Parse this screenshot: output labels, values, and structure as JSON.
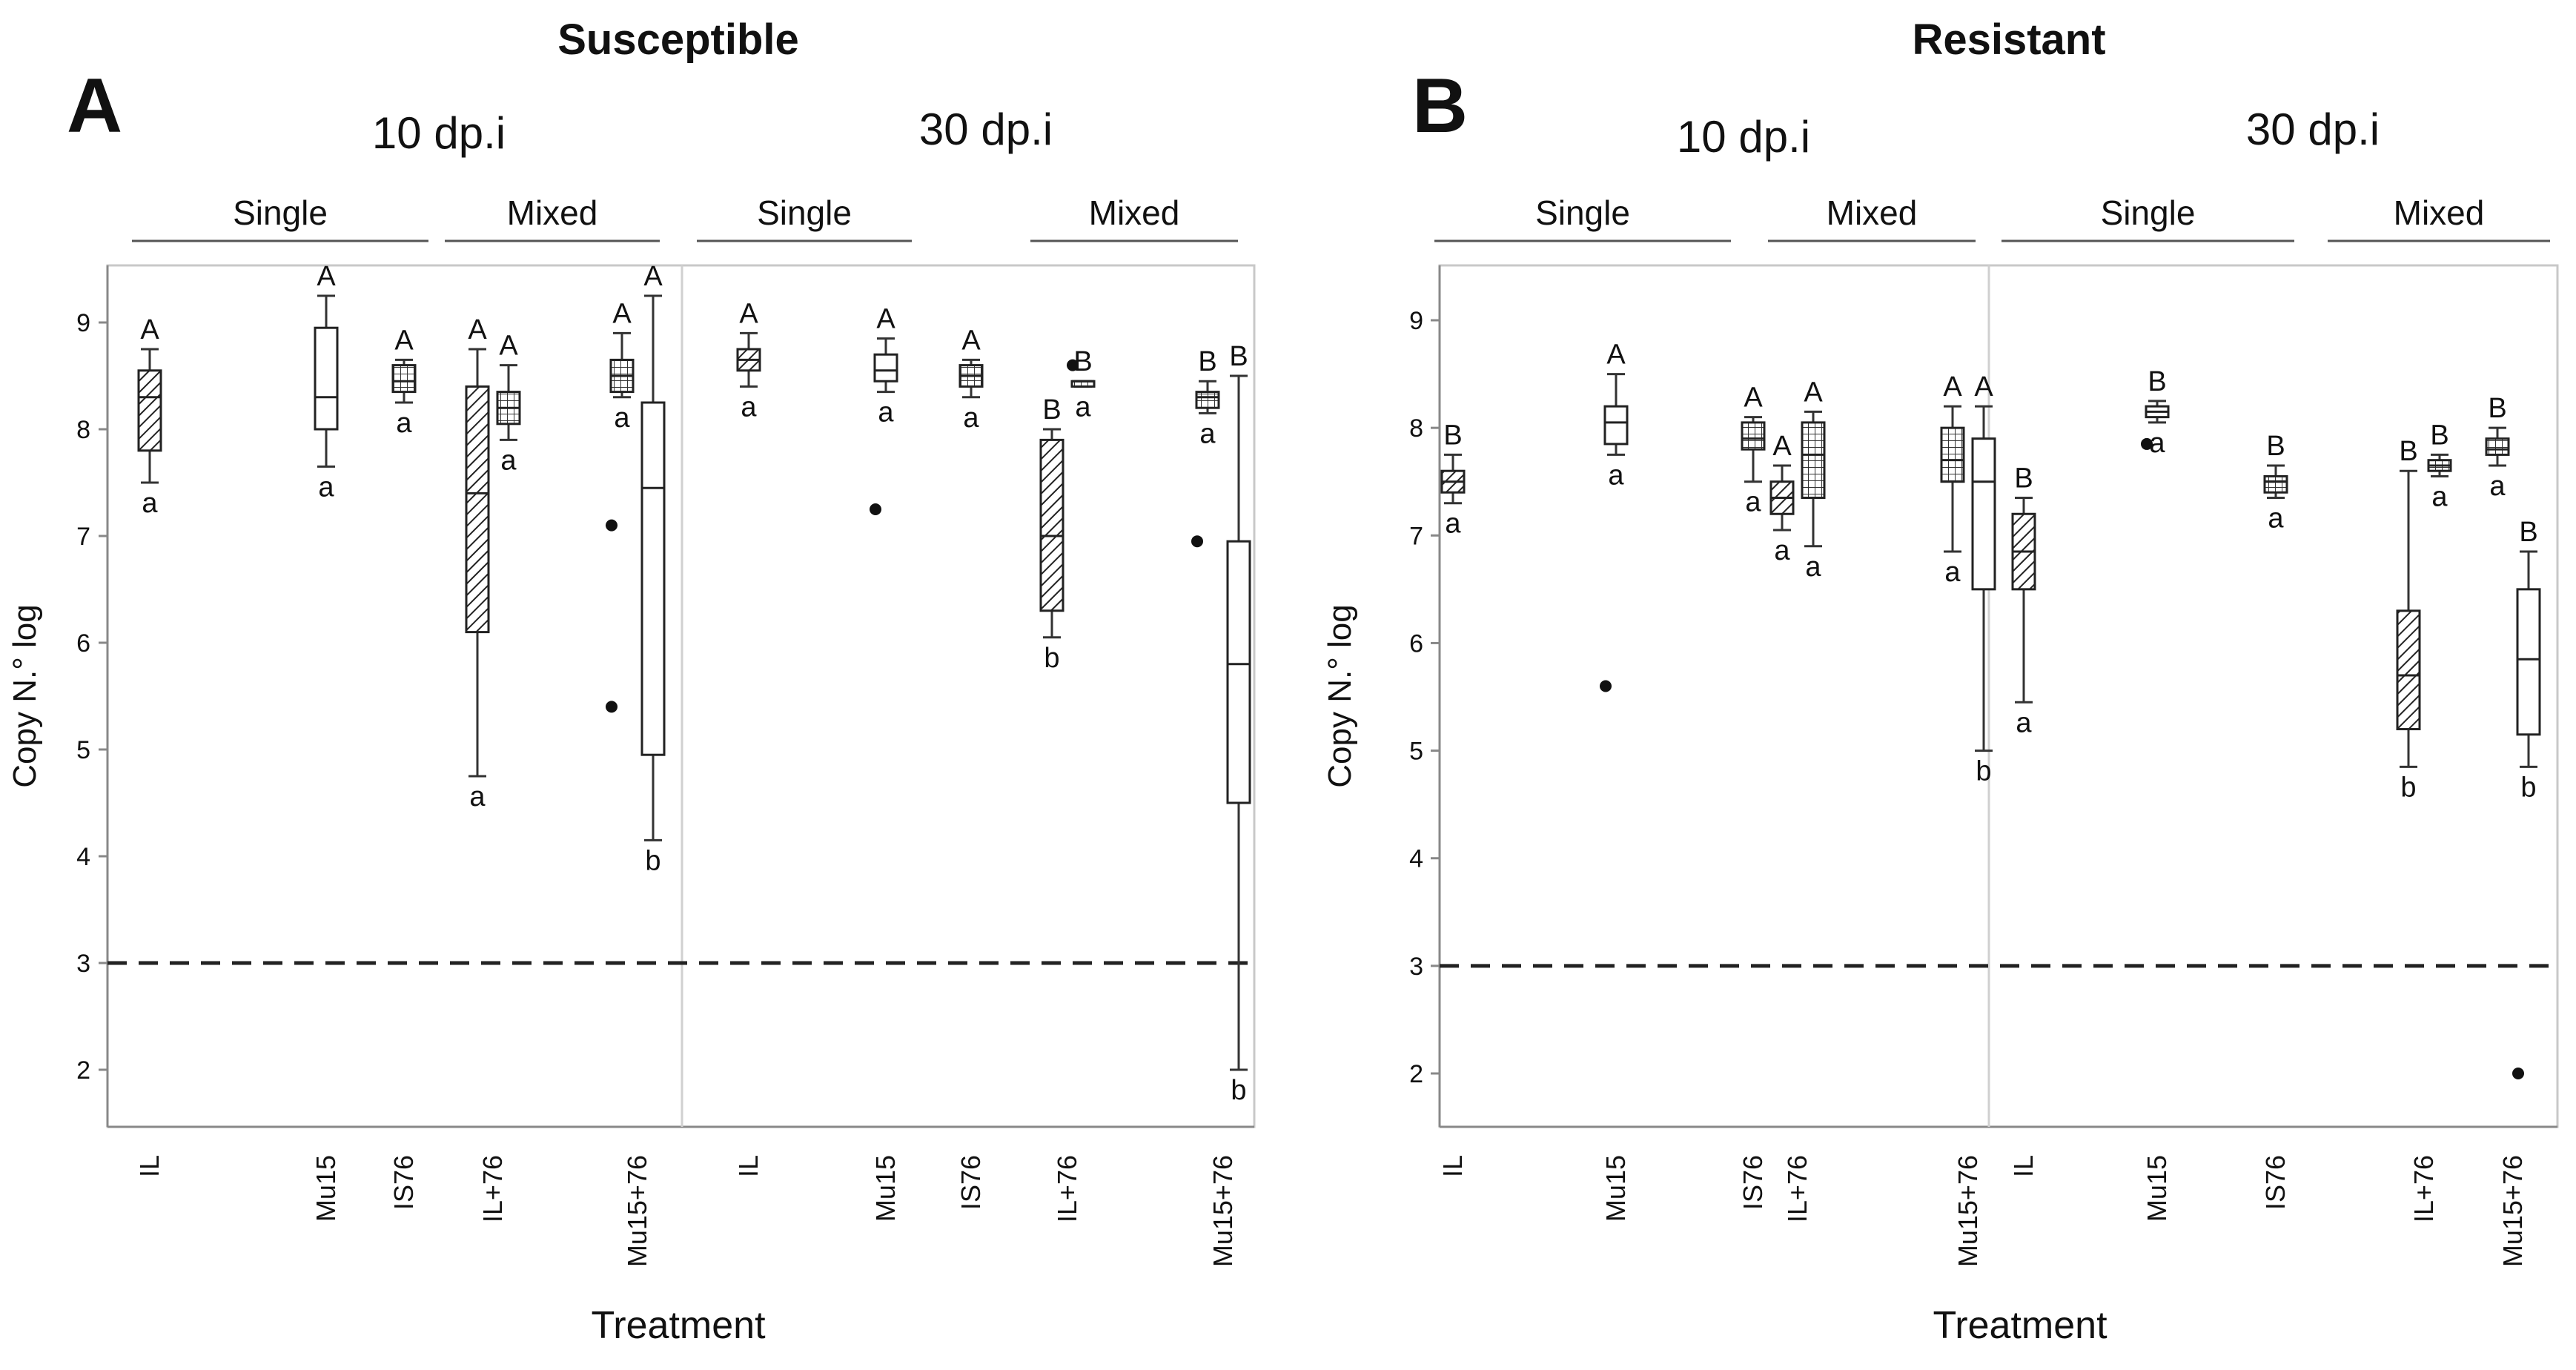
{
  "chart_data": [
    {
      "type": "boxplot",
      "panel": "A",
      "title": "Susceptible",
      "xlabel": "Treatment",
      "ylabel": "Copy N.° log",
      "ylim": [
        1.5,
        9.6
      ],
      "yticks": [
        2,
        3,
        4,
        5,
        6,
        7,
        8,
        9
      ],
      "threshold": 3,
      "timepoints": [
        "10 dp.i",
        "30 dp.i"
      ],
      "groups": [
        {
          "label": "Single",
          "timepoint": 0
        },
        {
          "label": "Mixed",
          "timepoint": 0
        },
        {
          "label": "Single",
          "timepoint": 1
        },
        {
          "label": "Mixed",
          "timepoint": 1
        }
      ],
      "categories": [
        "IL",
        "Mu15",
        "IS76",
        "IL+76",
        "Mu15+76",
        "IL",
        "Mu15",
        "IS76",
        "IL+76",
        "Mu15+76"
      ],
      "boxes": [
        {
          "cat": 0,
          "offset": 0,
          "pattern": "hatch",
          "min": 7.5,
          "q1": 7.8,
          "median": 8.3,
          "q3": 8.55,
          "max": 8.75,
          "outliers": [],
          "top": "A",
          "bottom": "a"
        },
        {
          "cat": 1,
          "offset": 0,
          "pattern": "none",
          "min": 7.65,
          "q1": 8.0,
          "median": 8.3,
          "q3": 8.95,
          "max": 9.25,
          "outliers": [],
          "top": "A",
          "bottom": "a"
        },
        {
          "cat": 2,
          "offset": 0,
          "pattern": "grid",
          "min": 8.25,
          "q1": 8.35,
          "median": 8.45,
          "q3": 8.6,
          "max": 8.65,
          "outliers": [],
          "top": "A",
          "bottom": "a"
        },
        {
          "cat": 3,
          "offset": -0.3,
          "pattern": "hatch",
          "min": 4.75,
          "q1": 6.1,
          "median": 7.4,
          "q3": 8.4,
          "max": 8.75,
          "outliers": [],
          "top": "A",
          "bottom": "a"
        },
        {
          "cat": 3,
          "offset": 0.3,
          "pattern": "grid",
          "min": 7.9,
          "q1": 8.05,
          "median": 8.2,
          "q3": 8.35,
          "max": 8.6,
          "outliers": [],
          "top": "A",
          "bottom": "a"
        },
        {
          "cat": 4,
          "offset": -0.3,
          "pattern": "grid",
          "min": 8.3,
          "q1": 8.35,
          "median": 8.5,
          "q3": 8.65,
          "max": 8.9,
          "outliers": [
            7.1,
            5.4
          ],
          "top": "A",
          "bottom": "a"
        },
        {
          "cat": 4,
          "offset": 0.3,
          "pattern": "none",
          "min": 4.15,
          "q1": 4.95,
          "median": 7.45,
          "q3": 8.25,
          "max": 9.25,
          "outliers": [],
          "top": "A",
          "bottom": "b"
        },
        {
          "cat": 5,
          "offset": 0,
          "pattern": "hatch",
          "min": 8.4,
          "q1": 8.55,
          "median": 8.65,
          "q3": 8.75,
          "max": 8.9,
          "outliers": [],
          "top": "A",
          "bottom": "a"
        },
        {
          "cat": 6,
          "offset": 0,
          "pattern": "none",
          "min": 8.35,
          "q1": 8.45,
          "median": 8.55,
          "q3": 8.7,
          "max": 8.85,
          "outliers": [
            7.25
          ],
          "top": "A",
          "bottom": "a"
        },
        {
          "cat": 7,
          "offset": 0,
          "pattern": "grid",
          "min": 8.3,
          "q1": 8.4,
          "median": 8.5,
          "q3": 8.6,
          "max": 8.65,
          "outliers": [],
          "top": "A",
          "bottom": "a"
        },
        {
          "cat": 8,
          "offset": -0.3,
          "pattern": "hatch",
          "min": 6.05,
          "q1": 6.3,
          "median": 7.0,
          "q3": 7.9,
          "max": 8.0,
          "outliers": [],
          "top": "B",
          "bottom": "b"
        },
        {
          "cat": 8,
          "offset": 0.3,
          "pattern": "grid",
          "min": 8.4,
          "q1": 8.4,
          "median": 8.45,
          "q3": 8.45,
          "max": 8.45,
          "outliers": [
            8.6
          ],
          "top": "B",
          "bottom": "a"
        },
        {
          "cat": 9,
          "offset": -0.3,
          "pattern": "grid",
          "min": 8.15,
          "q1": 8.2,
          "median": 8.3,
          "q3": 8.35,
          "max": 8.45,
          "outliers": [
            6.95
          ],
          "top": "B",
          "bottom": "a"
        },
        {
          "cat": 9,
          "offset": 0.3,
          "pattern": "none",
          "min": 2.0,
          "q1": 4.5,
          "median": 5.8,
          "q3": 6.95,
          "max": 8.5,
          "outliers": [],
          "top": "B",
          "bottom": "b"
        }
      ]
    },
    {
      "type": "boxplot",
      "panel": "B",
      "title": "Resistant",
      "xlabel": "Treatment",
      "ylabel": "Copy N.° log",
      "ylim": [
        1.5,
        9.6
      ],
      "yticks": [
        2,
        3,
        4,
        5,
        6,
        7,
        8,
        9
      ],
      "threshold": 3,
      "timepoints": [
        "10 dp.i",
        "30 dp.i"
      ],
      "groups": [
        {
          "label": "Single",
          "timepoint": 0
        },
        {
          "label": "Mixed",
          "timepoint": 0
        },
        {
          "label": "Single",
          "timepoint": 1
        },
        {
          "label": "Mixed",
          "timepoint": 1
        }
      ],
      "categories": [
        "IL",
        "Mu15",
        "IS76",
        "IL+76",
        "Mu15+76",
        "IL",
        "Mu15",
        "IS76",
        "IL+76",
        "Mu15+76"
      ],
      "boxes": [
        {
          "cat": 0,
          "offset": 0,
          "pattern": "hatch",
          "min": 7.3,
          "q1": 7.4,
          "median": 7.5,
          "q3": 7.6,
          "max": 7.75,
          "outliers": [],
          "top": "B",
          "bottom": "a"
        },
        {
          "cat": 1,
          "offset": 0,
          "pattern": "none",
          "min": 7.75,
          "q1": 7.85,
          "median": 8.05,
          "q3": 8.2,
          "max": 8.5,
          "outliers": [
            5.6
          ],
          "top": "A",
          "bottom": "a"
        },
        {
          "cat": 2,
          "offset": 0,
          "pattern": "grid",
          "min": 7.5,
          "q1": 7.8,
          "median": 7.9,
          "q3": 8.05,
          "max": 8.1,
          "outliers": [],
          "top": "A",
          "bottom": "a"
        },
        {
          "cat": 3,
          "offset": -0.3,
          "pattern": "hatch",
          "min": 7.05,
          "q1": 7.2,
          "median": 7.35,
          "q3": 7.5,
          "max": 7.65,
          "outliers": [],
          "top": "A",
          "bottom": "a"
        },
        {
          "cat": 3,
          "offset": 0.3,
          "pattern": "grid",
          "min": 6.9,
          "q1": 7.35,
          "median": 7.75,
          "q3": 8.05,
          "max": 8.15,
          "outliers": [],
          "top": "A",
          "bottom": "a"
        },
        {
          "cat": 4,
          "offset": -0.3,
          "pattern": "grid",
          "min": 6.85,
          "q1": 7.5,
          "median": 7.7,
          "q3": 8.0,
          "max": 8.2,
          "outliers": [],
          "top": "A",
          "bottom": "a"
        },
        {
          "cat": 4,
          "offset": 0.3,
          "pattern": "none",
          "min": 5.0,
          "q1": 6.5,
          "median": 7.5,
          "q3": 7.9,
          "max": 8.2,
          "outliers": [],
          "top": "A",
          "bottom": "b"
        },
        {
          "cat": 5,
          "offset": 0,
          "pattern": "hatch",
          "min": 5.45,
          "q1": 6.5,
          "median": 6.85,
          "q3": 7.2,
          "max": 7.35,
          "outliers": [],
          "top": "B",
          "bottom": "a"
        },
        {
          "cat": 6,
          "offset": 0,
          "pattern": "none",
          "min": 8.05,
          "q1": 8.1,
          "median": 8.15,
          "q3": 8.2,
          "max": 8.25,
          "outliers": [
            7.85
          ],
          "top": "B",
          "bottom": "a"
        },
        {
          "cat": 7,
          "offset": 0,
          "pattern": "grid",
          "min": 7.35,
          "q1": 7.4,
          "median": 7.5,
          "q3": 7.55,
          "max": 7.65,
          "outliers": [],
          "top": "B",
          "bottom": "a"
        },
        {
          "cat": 8,
          "offset": -0.3,
          "pattern": "hatch",
          "min": 4.85,
          "q1": 5.2,
          "median": 5.7,
          "q3": 6.3,
          "max": 7.6,
          "outliers": [],
          "top": "B",
          "bottom": "b"
        },
        {
          "cat": 8,
          "offset": 0.3,
          "pattern": "grid",
          "min": 7.55,
          "q1": 7.6,
          "median": 7.65,
          "q3": 7.7,
          "max": 7.75,
          "outliers": [],
          "top": "B",
          "bottom": "a"
        },
        {
          "cat": 9,
          "offset": -0.3,
          "pattern": "grid",
          "min": 7.65,
          "q1": 7.75,
          "median": 7.8,
          "q3": 7.9,
          "max": 8.0,
          "outliers": [],
          "top": "B",
          "bottom": "a"
        },
        {
          "cat": 9,
          "offset": 0.3,
          "pattern": "none",
          "min": 4.85,
          "q1": 5.15,
          "median": 5.85,
          "q3": 6.5,
          "max": 6.85,
          "outliers": [
            2.0
          ],
          "top": "B",
          "bottom": "b"
        }
      ]
    }
  ]
}
